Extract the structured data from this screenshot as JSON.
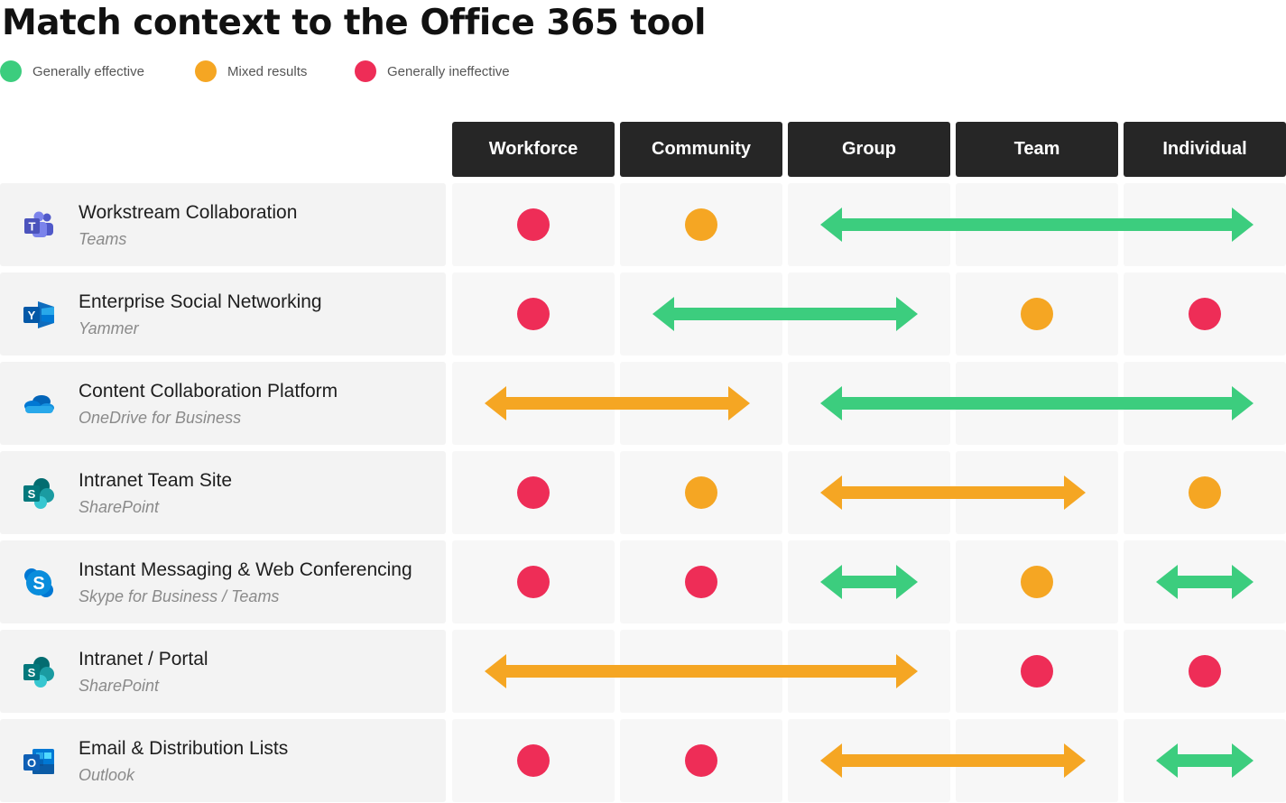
{
  "title": "Match context to the Office 365 tool",
  "colors": {
    "effective": "#3ccd7e",
    "mixed": "#f5a623",
    "ineffective": "#ee2d57"
  },
  "legend": [
    {
      "status": "effective",
      "label": "Generally effective"
    },
    {
      "status": "mixed",
      "label": "Mixed results"
    },
    {
      "status": "ineffective",
      "label": "Generally ineffective"
    }
  ],
  "columns": [
    "Workforce",
    "Community",
    "Group",
    "Team",
    "Individual"
  ],
  "rows": [
    {
      "name": "Workstream Collaboration",
      "product": "Teams",
      "icon": "teams-icon",
      "cells": [
        {
          "type": "dot",
          "status": "ineffective",
          "start": 0
        },
        {
          "type": "dot",
          "status": "mixed",
          "start": 1
        },
        {
          "type": "arrow",
          "status": "effective",
          "start": 2,
          "end": 4
        }
      ]
    },
    {
      "name": "Enterprise Social Networking",
      "product": "Yammer",
      "icon": "yammer-icon",
      "cells": [
        {
          "type": "dot",
          "status": "ineffective",
          "start": 0
        },
        {
          "type": "arrow",
          "status": "effective",
          "start": 1,
          "end": 2
        },
        {
          "type": "dot",
          "status": "mixed",
          "start": 3
        },
        {
          "type": "dot",
          "status": "ineffective",
          "start": 4
        }
      ]
    },
    {
      "name": "Content Collaboration Platform",
      "product": "OneDrive for Business",
      "icon": "onedrive-icon",
      "cells": [
        {
          "type": "arrow",
          "status": "mixed",
          "start": 0,
          "end": 1
        },
        {
          "type": "arrow",
          "status": "effective",
          "start": 2,
          "end": 4
        }
      ]
    },
    {
      "name": "Intranet Team Site",
      "product": "SharePoint",
      "icon": "sharepoint-icon",
      "cells": [
        {
          "type": "dot",
          "status": "ineffective",
          "start": 0
        },
        {
          "type": "dot",
          "status": "mixed",
          "start": 1
        },
        {
          "type": "arrow",
          "status": "mixed",
          "start": 2,
          "end": 3
        },
        {
          "type": "dot",
          "status": "mixed",
          "start": 4
        }
      ]
    },
    {
      "name": "Instant Messaging & Web Conferencing",
      "product": "Skype for Business / Teams",
      "icon": "skype-icon",
      "cells": [
        {
          "type": "dot",
          "status": "ineffective",
          "start": 0
        },
        {
          "type": "dot",
          "status": "ineffective",
          "start": 1
        },
        {
          "type": "arrow",
          "status": "effective",
          "start": 2,
          "end": 2
        },
        {
          "type": "dot",
          "status": "mixed",
          "start": 3
        },
        {
          "type": "arrow",
          "status": "effective",
          "start": 4,
          "end": 4
        }
      ]
    },
    {
      "name": "Intranet / Portal",
      "product": "SharePoint",
      "icon": "sharepoint-icon",
      "cells": [
        {
          "type": "arrow",
          "status": "mixed",
          "start": 0,
          "end": 2
        },
        {
          "type": "dot",
          "status": "ineffective",
          "start": 3
        },
        {
          "type": "dot",
          "status": "ineffective",
          "start": 4
        }
      ]
    },
    {
      "name": "Email & Distribution Lists",
      "product": "Outlook",
      "icon": "outlook-icon",
      "cells": [
        {
          "type": "dot",
          "status": "ineffective",
          "start": 0
        },
        {
          "type": "dot",
          "status": "ineffective",
          "start": 1
        },
        {
          "type": "arrow",
          "status": "mixed",
          "start": 2,
          "end": 3
        },
        {
          "type": "arrow",
          "status": "effective",
          "start": 4,
          "end": 4
        }
      ]
    }
  ]
}
